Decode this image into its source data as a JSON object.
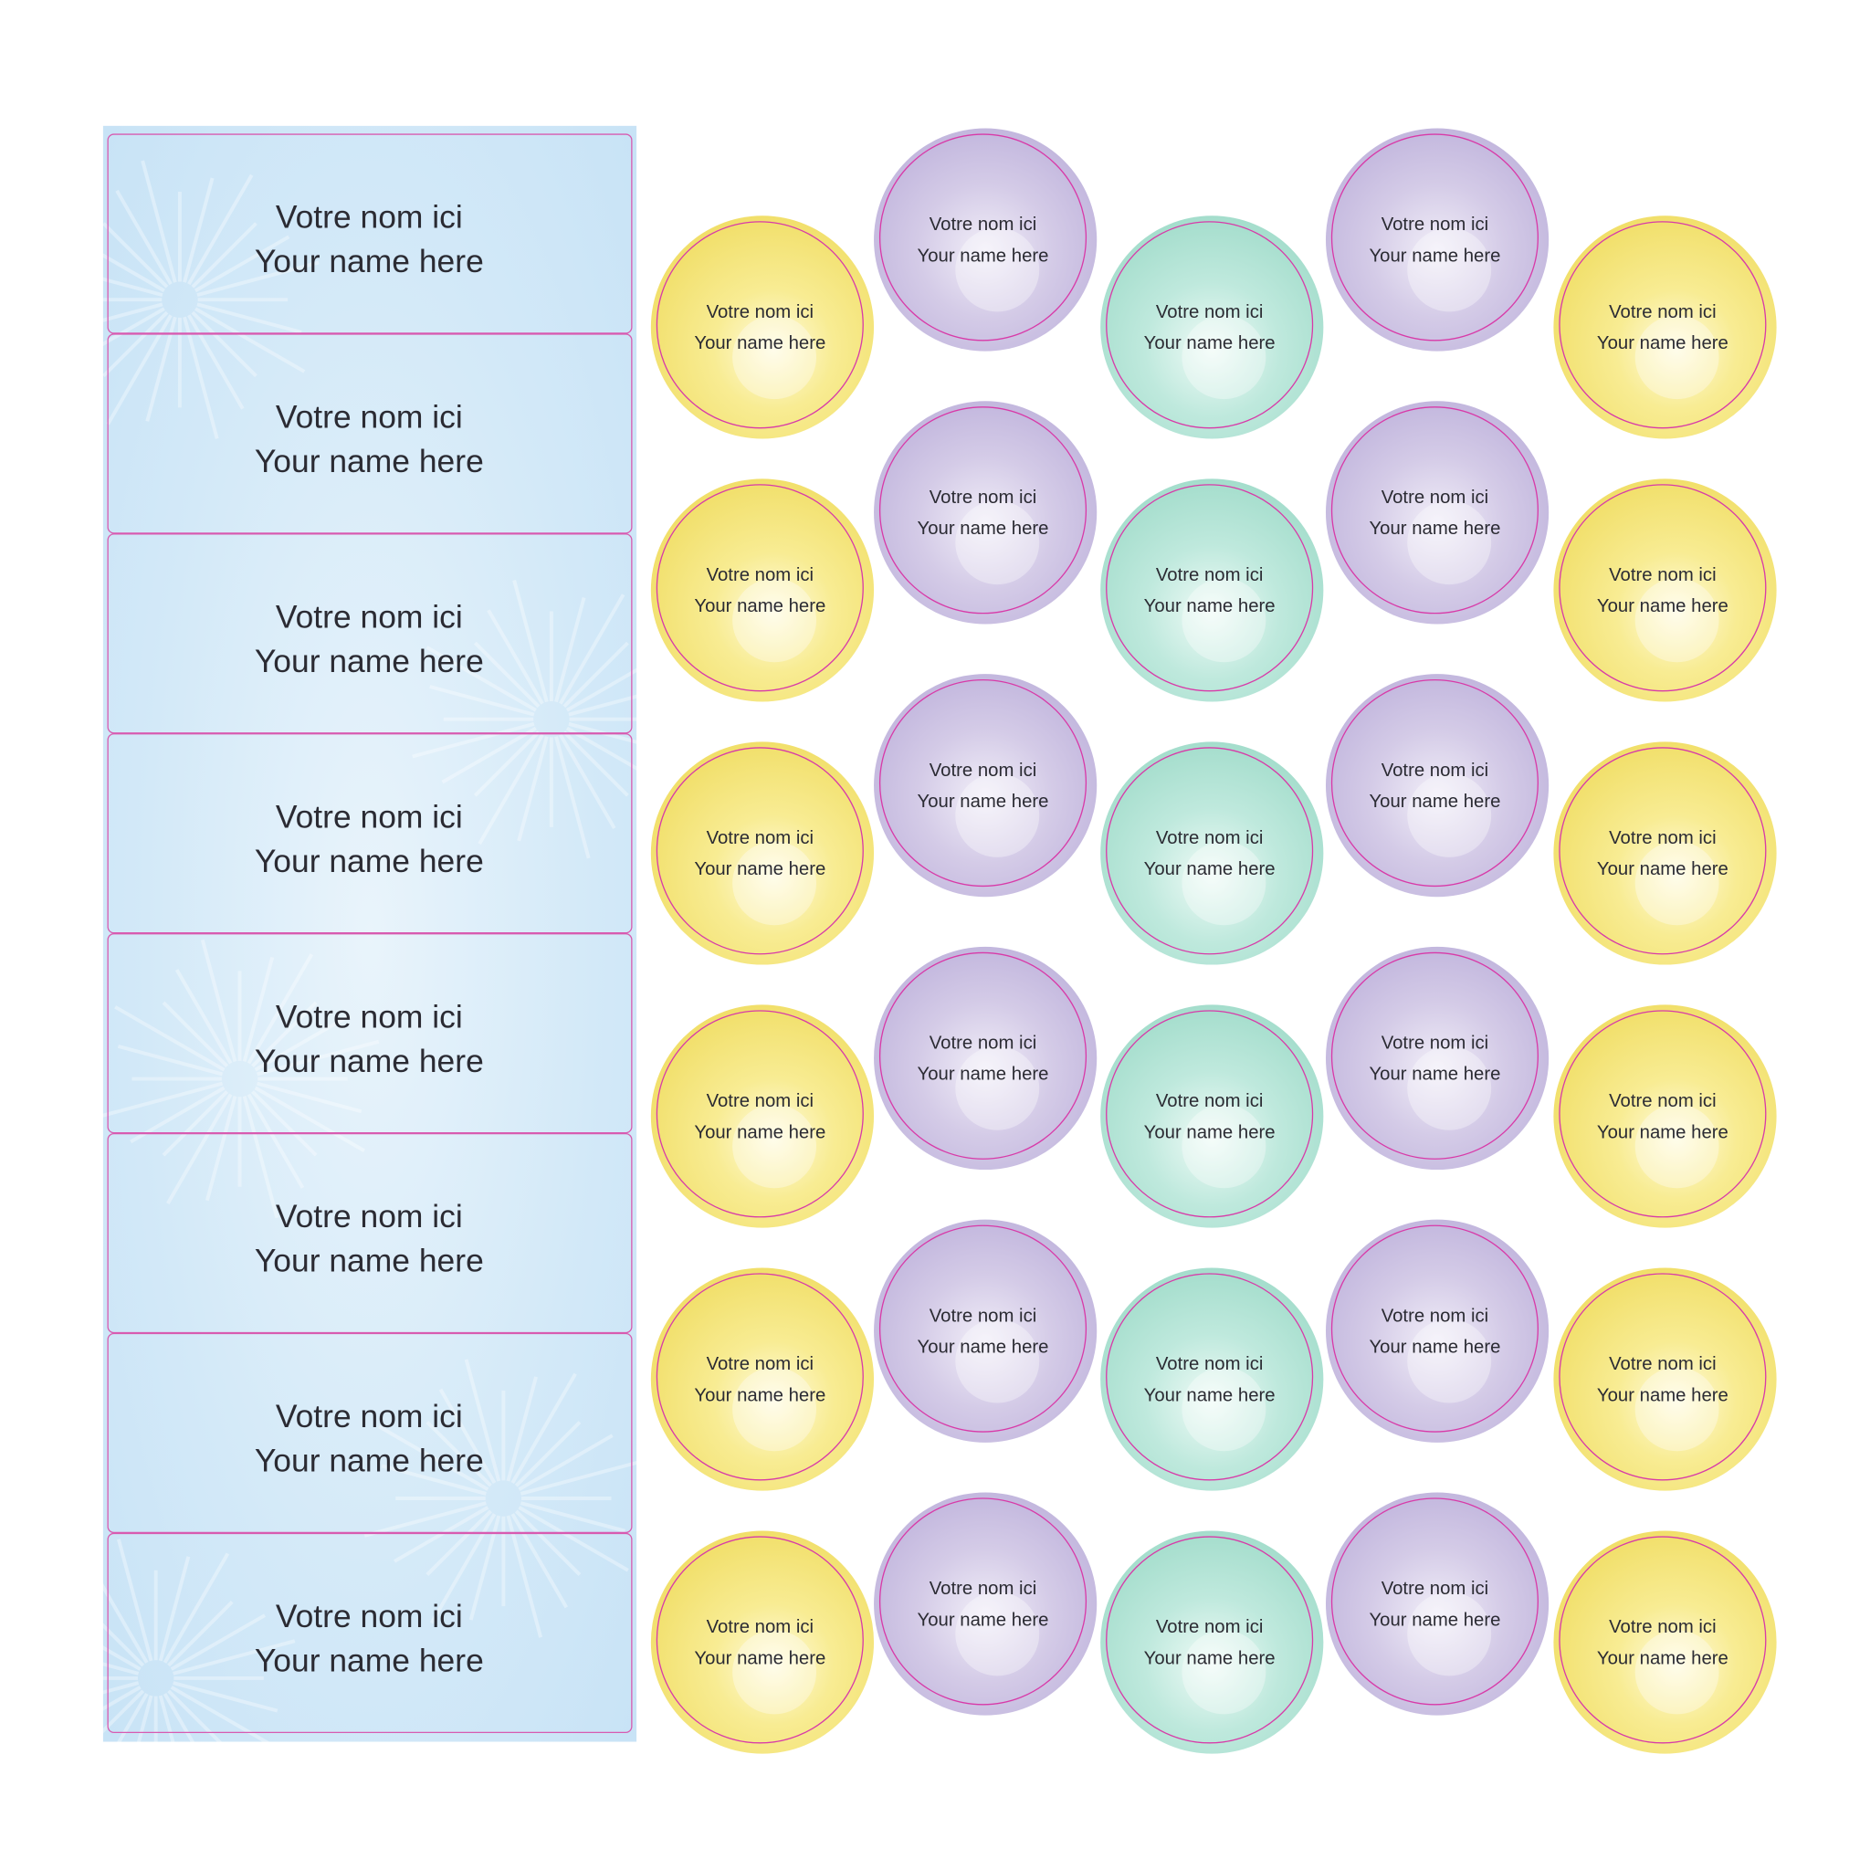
{
  "rect_labels": [
    {
      "line1": "Votre nom ici",
      "line2": "Your name here"
    },
    {
      "line1": "Votre nom ici",
      "line2": "Your name here"
    },
    {
      "line1": "Votre nom ici",
      "line2": "Your name here"
    },
    {
      "line1": "Votre nom ici",
      "line2": "Your name here"
    },
    {
      "line1": "Votre nom ici",
      "line2": "Your name here"
    },
    {
      "line1": "Votre nom ici",
      "line2": "Your name here"
    },
    {
      "line1": "Votre nom ici",
      "line2": "Your name here"
    },
    {
      "line1": "Votre nom ici",
      "line2": "Your name here"
    }
  ],
  "circle_labels": [
    {
      "line1": "Votre nom ici",
      "line2": "Your name here"
    },
    {
      "line1": "Votre nom ici",
      "line2": "Your name here"
    },
    {
      "line1": "Votre nom ici",
      "line2": "Your name here"
    },
    {
      "line1": "Votre nom ici",
      "line2": "Your name here"
    },
    {
      "line1": "Votre nom ici",
      "line2": "Your name here"
    },
    {
      "line1": "Votre nom ici",
      "line2": "Your name here"
    },
    {
      "line1": "Votre nom ici",
      "line2": "Your name here"
    },
    {
      "line1": "Votre nom ici",
      "line2": "Your name here"
    },
    {
      "line1": "Votre nom ici",
      "line2": "Your name here"
    },
    {
      "line1": "Votre nom ici",
      "line2": "Your name here"
    },
    {
      "line1": "Votre nom ici",
      "line2": "Your name here"
    },
    {
      "line1": "Votre nom ici",
      "line2": "Your name here"
    },
    {
      "line1": "Votre nom ici",
      "line2": "Your name here"
    },
    {
      "line1": "Votre nom ici",
      "line2": "Your name here"
    },
    {
      "line1": "Votre nom ici",
      "line2": "Your name here"
    },
    {
      "line1": "Votre nom ici",
      "line2": "Your name here"
    },
    {
      "line1": "Votre nom ici",
      "line2": "Your name here"
    },
    {
      "line1": "Votre nom ici",
      "line2": "Your name here"
    },
    {
      "line1": "Votre nom ici",
      "line2": "Your name here"
    },
    {
      "line1": "Votre nom ici",
      "line2": "Your name here"
    },
    {
      "line1": "Votre nom ici",
      "line2": "Your name here"
    },
    {
      "line1": "Votre nom ici",
      "line2": "Your name here"
    },
    {
      "line1": "Votre nom ici",
      "line2": "Your name here"
    },
    {
      "line1": "Votre nom ici",
      "line2": "Your name here"
    },
    {
      "line1": "Votre nom ici",
      "line2": "Your name here"
    },
    {
      "line1": "Votre nom ici",
      "line2": "Your name here"
    },
    {
      "line1": "Votre nom ici",
      "line2": "Your name here"
    },
    {
      "line1": "Votre nom ici",
      "line2": "Your name here"
    },
    {
      "line1": "Votre nom ici",
      "line2": "Your name here"
    },
    {
      "line1": "Votre nom ici",
      "line2": "Your name here"
    }
  ]
}
